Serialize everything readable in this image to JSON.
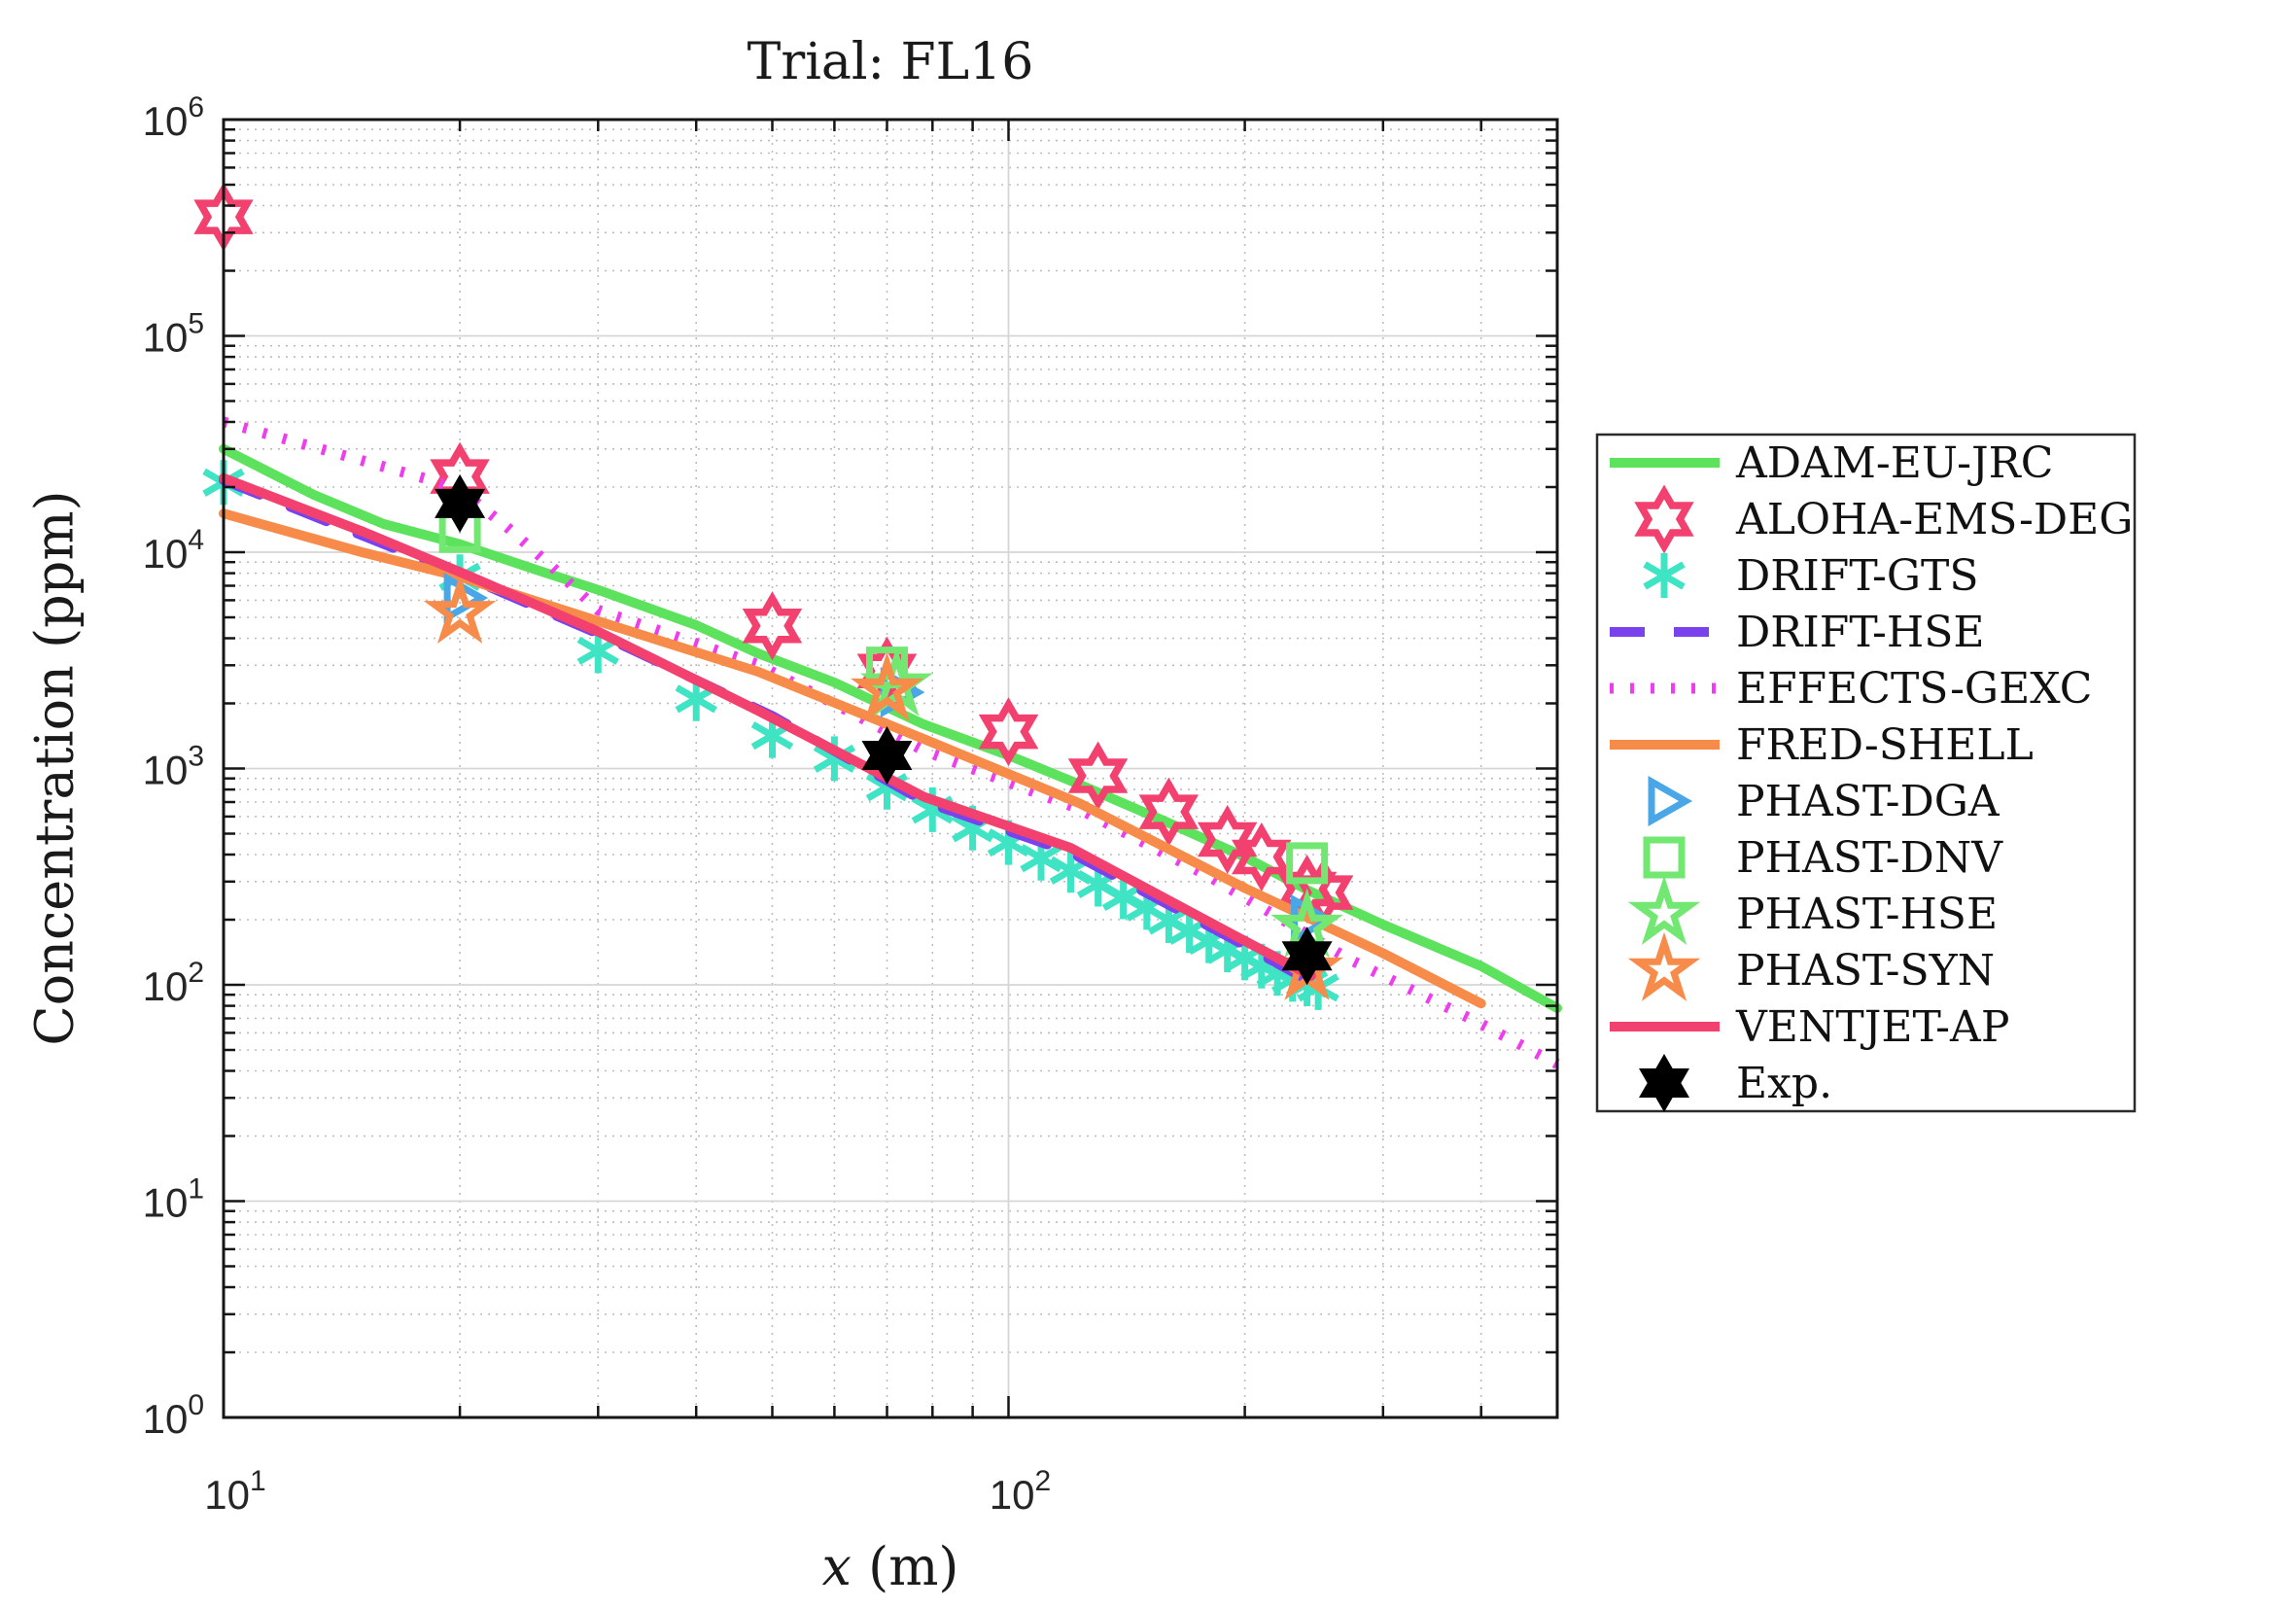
{
  "title": "Trial: FL16",
  "axes": {
    "xlabel_var": "x",
    "xlabel_unit": "(m)",
    "ylabel": "Concentration (ppm)",
    "x_tick_exponents": [
      1,
      2
    ],
    "y_tick_exponents": [
      0,
      1,
      2,
      3,
      4,
      5,
      6
    ],
    "tick_base": "10"
  },
  "colors": {
    "green_line": "#5ce25c",
    "green_marker": "#72e872",
    "crimson": "#f2416e",
    "cyan": "#3fe4c4",
    "purple": "#7a42ec",
    "magenta": "#ee3cee",
    "orange": "#f78b4a",
    "blue": "#49a7e8",
    "black": "#000000",
    "grid_minor": "#bdbdbd",
    "grid_major": "#d6d6d6",
    "axis": "#151515"
  },
  "chart_data": {
    "type": "line",
    "title": "Trial: FL16",
    "xlabel": "x (m)",
    "ylabel": "Concentration (ppm)",
    "xscale": "log",
    "yscale": "log",
    "xlim": [
      10,
      500
    ],
    "ylim": [
      1,
      1000000
    ],
    "grid": true,
    "legend_position": "outside-right",
    "series": [
      {
        "name": "ADAM-EU-JRC",
        "kind": "line",
        "style": "solid",
        "color": "#5ce25c",
        "points": [
          [
            10,
            30000
          ],
          [
            13,
            18500
          ],
          [
            16,
            13500
          ],
          [
            20,
            10900
          ],
          [
            25,
            8300
          ],
          [
            30,
            6700
          ],
          [
            40,
            4600
          ],
          [
            48,
            3400
          ],
          [
            60,
            2500
          ],
          [
            78,
            1600
          ],
          [
            100,
            1150
          ],
          [
            123,
            845
          ],
          [
            160,
            560
          ],
          [
            200,
            390
          ],
          [
            241,
            273
          ],
          [
            300,
            190
          ],
          [
            400,
            122
          ],
          [
            500,
            78
          ]
        ]
      },
      {
        "name": "ALOHA-EMS-DEG",
        "kind": "scatter",
        "marker": "hexagram-open",
        "color": "#f2416e",
        "points": [
          [
            10,
            355000
          ],
          [
            20,
            22400
          ],
          [
            50,
            4570
          ],
          [
            70,
            2820
          ],
          [
            100,
            1480
          ],
          [
            130,
            925
          ],
          [
            160,
            630
          ],
          [
            190,
            470
          ],
          [
            210,
            390
          ],
          [
            240,
            277
          ],
          [
            252,
            267
          ]
        ]
      },
      {
        "name": "DRIFT-GTS",
        "kind": "scatter",
        "marker": "asterisk",
        "color": "#3fe4c4",
        "points": [
          [
            10,
            21000
          ],
          [
            20,
            7700
          ],
          [
            30,
            3500
          ],
          [
            40,
            2100
          ],
          [
            50,
            1420
          ],
          [
            60,
            1110
          ],
          [
            70,
            820
          ],
          [
            80,
            645
          ],
          [
            90,
            530
          ],
          [
            100,
            455
          ],
          [
            110,
            385
          ],
          [
            120,
            338
          ],
          [
            130,
            292
          ],
          [
            140,
            255
          ],
          [
            150,
            228
          ],
          [
            160,
            198
          ],
          [
            170,
            178
          ],
          [
            180,
            160
          ],
          [
            190,
            145
          ],
          [
            200,
            133
          ],
          [
            210,
            122
          ],
          [
            220,
            113
          ],
          [
            230,
            106
          ],
          [
            240,
            101
          ],
          [
            248,
            97
          ]
        ]
      },
      {
        "name": "DRIFT-HSE",
        "kind": "line",
        "style": "dashed",
        "color": "#7a42ec",
        "points": [
          [
            10,
            21500
          ],
          [
            20,
            7900
          ],
          [
            30,
            4200
          ],
          [
            50,
            1750
          ],
          [
            78,
            705
          ],
          [
            120,
            408
          ],
          [
            190,
            168
          ],
          [
            243,
            103
          ]
        ]
      },
      {
        "name": "EFFECTS-GEXC",
        "kind": "line",
        "style": "dotted",
        "color": "#ee3cee",
        "points": [
          [
            10,
            40000
          ],
          [
            14,
            28500
          ],
          [
            18,
            22000
          ],
          [
            20,
            19500
          ],
          [
            23,
            13000
          ],
          [
            26,
            8800
          ],
          [
            30,
            5400
          ],
          [
            36,
            4320
          ],
          [
            48,
            3020
          ],
          [
            60,
            1990
          ],
          [
            78,
            1210
          ],
          [
            100,
            863
          ],
          [
            123,
            650
          ],
          [
            180,
            317
          ],
          [
            272,
            131
          ],
          [
            400,
            66
          ],
          [
            500,
            43
          ]
        ]
      },
      {
        "name": "FRED-SHELL",
        "kind": "line",
        "style": "solid",
        "color": "#f78b4a",
        "points": [
          [
            10,
            15100
          ],
          [
            15,
            10000
          ],
          [
            20,
            7700
          ],
          [
            30,
            4800
          ],
          [
            48,
            2800
          ],
          [
            78,
            1370
          ],
          [
            123,
            692
          ],
          [
            200,
            280
          ],
          [
            241,
            204
          ],
          [
            300,
            140
          ],
          [
            400,
            82
          ]
        ]
      },
      {
        "name": "PHAST-DGA",
        "kind": "scatter",
        "marker": "triangle-right-open",
        "color": "#49a7e8",
        "points": [
          [
            20,
            6150
          ],
          [
            72,
            2250
          ],
          [
            240,
            200
          ]
        ]
      },
      {
        "name": "PHAST-DNV",
        "kind": "scatter",
        "marker": "square-open",
        "color": "#72e872",
        "points": [
          [
            20,
            12400
          ],
          [
            70,
            2930
          ],
          [
            240,
            365
          ]
        ]
      },
      {
        "name": "PHAST-HSE",
        "kind": "scatter",
        "marker": "star5-open",
        "color": "#72e872",
        "points": [
          [
            72,
            2430
          ],
          [
            240,
            186
          ]
        ]
      },
      {
        "name": "PHAST-SYN",
        "kind": "scatter",
        "marker": "star5-open",
        "color": "#f78b4a",
        "points": [
          [
            20,
            5250
          ],
          [
            70,
            2300
          ],
          [
            240,
            118
          ]
        ]
      },
      {
        "name": "VENTJET-AP",
        "kind": "line",
        "style": "solid",
        "color": "#f2416e",
        "points": [
          [
            10,
            22000
          ],
          [
            15,
            12500
          ],
          [
            20,
            8100
          ],
          [
            30,
            4300
          ],
          [
            48,
            1850
          ],
          [
            78,
            740
          ],
          [
            120,
            430
          ],
          [
            190,
            176
          ],
          [
            243,
            110
          ]
        ]
      },
      {
        "name": "Exp.",
        "kind": "scatter",
        "marker": "hexagram-filled",
        "color": "#000000",
        "points": [
          [
            20,
            16800
          ],
          [
            70,
            1150
          ],
          [
            240,
            136
          ]
        ]
      }
    ]
  }
}
